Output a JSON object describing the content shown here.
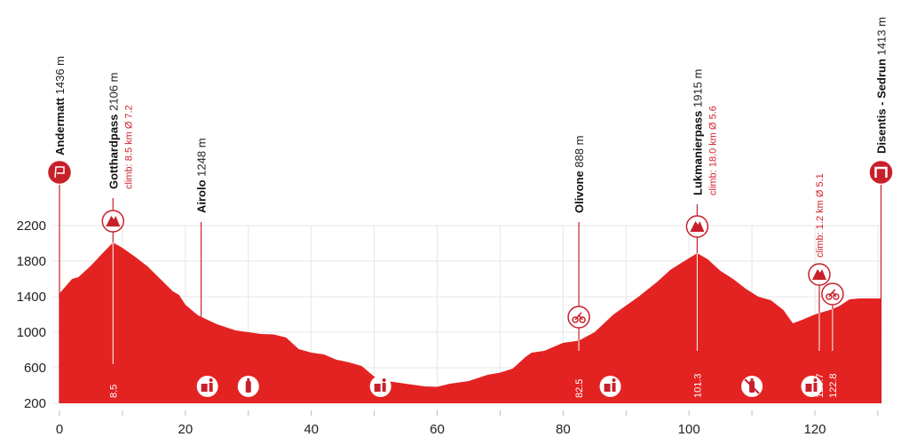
{
  "chart_data": {
    "type": "area",
    "title": "",
    "xlabel": "",
    "ylabel": "",
    "xlim": [
      0,
      130.5
    ],
    "ylim": [
      200,
      2200
    ],
    "x_ticks": [
      0,
      20,
      40,
      60,
      80,
      100,
      120
    ],
    "y_ticks": [
      200,
      600,
      1000,
      1400,
      1800,
      2200
    ],
    "grid": true,
    "color": "#e32322",
    "profile": [
      [
        0,
        1436
      ],
      [
        2,
        1600
      ],
      [
        3,
        1620
      ],
      [
        5,
        1750
      ],
      [
        7,
        1900
      ],
      [
        8.5,
        2010
      ],
      [
        10,
        1950
      ],
      [
        12,
        1850
      ],
      [
        14,
        1740
      ],
      [
        16,
        1600
      ],
      [
        18,
        1460
      ],
      [
        19,
        1420
      ],
      [
        20,
        1310
      ],
      [
        22,
        1190
      ],
      [
        25,
        1090
      ],
      [
        28,
        1020
      ],
      [
        32,
        980
      ],
      [
        34,
        975
      ],
      [
        36,
        940
      ],
      [
        38,
        810
      ],
      [
        40,
        770
      ],
      [
        42,
        750
      ],
      [
        44,
        690
      ],
      [
        46,
        660
      ],
      [
        48,
        620
      ],
      [
        50,
        500
      ],
      [
        52,
        450
      ],
      [
        55,
        420
      ],
      [
        58,
        390
      ],
      [
        60,
        385
      ],
      [
        62,
        420
      ],
      [
        65,
        450
      ],
      [
        68,
        520
      ],
      [
        70,
        545
      ],
      [
        72,
        590
      ],
      [
        74,
        720
      ],
      [
        75,
        770
      ],
      [
        77,
        790
      ],
      [
        80,
        880
      ],
      [
        82.5,
        905
      ],
      [
        85,
        1000
      ],
      [
        88,
        1200
      ],
      [
        90,
        1300
      ],
      [
        92,
        1400
      ],
      [
        95,
        1570
      ],
      [
        97,
        1700
      ],
      [
        99,
        1790
      ],
      [
        101.3,
        1890
      ],
      [
        103,
        1820
      ],
      [
        105,
        1690
      ],
      [
        107,
        1600
      ],
      [
        109,
        1490
      ],
      [
        111,
        1400
      ],
      [
        113,
        1360
      ],
      [
        115,
        1250
      ],
      [
        116.5,
        1100
      ],
      [
        118,
        1140
      ],
      [
        120,
        1200
      ],
      [
        122.8,
        1260
      ],
      [
        124,
        1300
      ],
      [
        125.5,
        1370
      ],
      [
        127,
        1380
      ],
      [
        130.5,
        1380
      ]
    ],
    "points": [
      {
        "km": 0,
        "name": "Andermatt",
        "alt": "1436 m",
        "type": "start"
      },
      {
        "km": 8.5,
        "name": "Gotthardpass",
        "alt": "2106 m",
        "climb": "climb: 8.5 km Ø 7.2",
        "type": "kom1",
        "km_label": "8.5"
      },
      {
        "km": 22.5,
        "name": "Airolo",
        "alt": "1248 m",
        "type": "town"
      },
      {
        "km": 82.5,
        "name": "Olivone",
        "alt": "888 m",
        "type": "sprint",
        "km_label": "82.5"
      },
      {
        "km": 101.3,
        "name": "Lukmanierpass",
        "alt": "1915 m",
        "climb": "climb: 18.0 km Ø 5.6",
        "type": "kom1",
        "km_label": "101.3"
      },
      {
        "km": 120.7,
        "name": "",
        "alt": "",
        "climb": "climb: 1.2 km Ø 5.1",
        "type": "kom3",
        "km_label": "120.7"
      },
      {
        "km": 122.8,
        "name": "",
        "alt": "",
        "type": "sprint",
        "km_label": "122.8"
      },
      {
        "km": 130.5,
        "name": "Disentis - Sedrun",
        "alt": "1413 m",
        "type": "finish"
      }
    ],
    "service_icons": [
      {
        "km": 23.5,
        "icon": "litter-zone-icon"
      },
      {
        "km": 30,
        "icon": "feed-bottle-icon"
      },
      {
        "km": 51,
        "icon": "litter-zone-icon"
      },
      {
        "km": 87.5,
        "icon": "litter-zone-icon"
      },
      {
        "km": 110,
        "icon": "no-litter-bottle-icon"
      },
      {
        "km": 119.5,
        "icon": "litter-zone-icon"
      }
    ]
  }
}
